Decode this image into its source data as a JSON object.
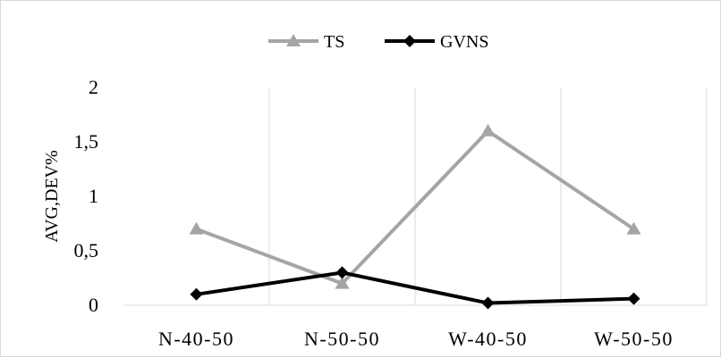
{
  "chart_data": {
    "type": "line",
    "title": "",
    "xlabel": "",
    "ylabel": "AVG,DEV%",
    "categories": [
      "N-40-50",
      "N-50-50",
      "W-40-50",
      "W-50-50"
    ],
    "y_ticks": [
      "0",
      "0,5",
      "1",
      "1,5",
      "2"
    ],
    "ylim": [
      0,
      2
    ],
    "grid": "vertical",
    "legend_position": "top",
    "series": [
      {
        "name": "TS",
        "values": [
          0.7,
          0.2,
          1.6,
          0.7
        ],
        "color": "#a5a5a5",
        "marker": "triangle"
      },
      {
        "name": "GVNS",
        "values": [
          0.1,
          0.3,
          0.02,
          0.06
        ],
        "color": "#000000",
        "marker": "diamond"
      }
    ]
  }
}
